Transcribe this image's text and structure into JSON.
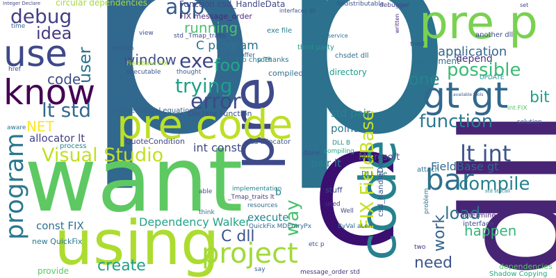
{
  "words": [
    {
      "text": "p",
      "color": "#31688e"
    },
    {
      "text": "p",
      "color": "#2c718e"
    },
    {
      "text": "dll",
      "color": "#482475"
    },
    {
      "text": "want",
      "color": "#5ec962"
    },
    {
      "text": "C",
      "color": "#3b0f70"
    },
    {
      "text": "using",
      "color": "#addc30"
    },
    {
      "text": "pre",
      "color": "#3e4a89"
    },
    {
      "text": "code",
      "color": "#26828e"
    },
    {
      "text": "pre code",
      "color": "#bddf26"
    },
    {
      "text": "use",
      "color": "#3e4989"
    },
    {
      "text": "know",
      "color": "#440154"
    },
    {
      "text": "pre p",
      "color": "#7ad151"
    },
    {
      "text": "project",
      "color": "#a0da39"
    },
    {
      "text": "gt gt",
      "color": "#31688e"
    },
    {
      "text": "program",
      "color": "#2a788e"
    },
    {
      "text": "Visual Studio",
      "color": "#c2df23"
    },
    {
      "text": "FIX FieldBase",
      "color": "#c5e021"
    },
    {
      "text": "debug",
      "color": "#433e85"
    },
    {
      "text": "lt std",
      "color": "#31688e"
    },
    {
      "text": "bar",
      "color": "#2d708e"
    },
    {
      "text": "lt int",
      "color": "#3b528b"
    },
    {
      "text": "trying",
      "color": "#1f9e89"
    },
    {
      "text": "function",
      "color": "#2a788e"
    },
    {
      "text": "error",
      "color": "#3e4989"
    },
    {
      "text": "possible",
      "color": "#3bbb75"
    },
    {
      "text": "app",
      "color": "#375a8c"
    },
    {
      "text": "exe",
      "color": "#404588"
    },
    {
      "text": "foo",
      "color": "#22a884"
    },
    {
      "text": "idea",
      "color": "#443983"
    },
    {
      "text": "user",
      "color": "#2c728e"
    },
    {
      "text": "one",
      "color": "#25848e"
    },
    {
      "text": "compile",
      "color": "#26828e"
    },
    {
      "text": "load",
      "color": "#2c728e"
    },
    {
      "text": "need",
      "color": "#3a548c"
    },
    {
      "text": "work",
      "color": "#33638d"
    },
    {
      "text": "way",
      "color": "#46c06f"
    },
    {
      "text": "create",
      "color": "#1fa088"
    },
    {
      "text": "C dll",
      "color": "#3b528b"
    },
    {
      "text": "running",
      "color": "#4ac16d"
    },
    {
      "text": "window",
      "color": "#3d4e8a"
    },
    {
      "text": "C program",
      "color": "#2d718e"
    },
    {
      "text": "code",
      "color": "#3e4c8a"
    },
    {
      "text": "NET",
      "color": "#fde725"
    },
    {
      "text": "Dependency Walker",
      "color": "#20a386"
    },
    {
      "text": "execute",
      "color": "#24868e"
    },
    {
      "text": "application",
      "color": "#31688e"
    },
    {
      "text": "FieldBase gt",
      "color": "#31688e"
    },
    {
      "text": "happen",
      "color": "#35b779"
    },
    {
      "text": "bit",
      "color": "#1f9e89"
    },
    {
      "text": "int const",
      "color": "#3f4788"
    },
    {
      "text": "const FIX",
      "color": "#2d708e"
    },
    {
      "text": "allocator lt",
      "color": "#423f85"
    },
    {
      "text": "std pair",
      "color": "#25858e"
    },
    {
      "text": "point",
      "color": "#2a768e"
    },
    {
      "text": "pair lt",
      "color": "#27808e"
    },
    {
      "text": "depend",
      "color": "#46307e"
    },
    {
      "text": "Microsoft",
      "color": "#38598c"
    },
    {
      "text": "Function csd_HandleData",
      "color": "#3f4889"
    },
    {
      "text": "circular dependencies",
      "color": "#a2da37"
    },
    {
      "text": "FIX message_order",
      "color": "#482878"
    },
    {
      "text": "implement",
      "color": "#2e6f8e"
    },
    {
      "text": "directory",
      "color": "#1e9b8a"
    },
    {
      "text": "compiled",
      "color": "#2f6b8e"
    },
    {
      "text": "mathematical equations",
      "color": "#34618d"
    },
    {
      "text": "Declare Function",
      "color": "#3b518b"
    },
    {
      "text": "QuoteCondition",
      "color": "#414487"
    },
    {
      "text": "std allocator",
      "color": "#39568c"
    },
    {
      "text": "Lib chsdet",
      "color": "#26828e"
    },
    {
      "text": "exe file",
      "color": "#287d8e"
    },
    {
      "text": "chsdet dll",
      "color": "#2e6e8e"
    },
    {
      "text": "third party",
      "color": "#1f958b"
    },
    {
      "text": "p Thanks",
      "color": "#2b758e"
    },
    {
      "text": "FieldBase FIX",
      "color": "#a8db34"
    },
    {
      "text": "executable",
      "color": "#3a548c"
    },
    {
      "text": "thought",
      "color": "#365d8d"
    },
    {
      "text": "std _Tmap_traits",
      "color": "#404588"
    },
    {
      "text": "DLL B",
      "color": "#21908d"
    },
    {
      "text": "DLL file",
      "color": "#2a788e"
    },
    {
      "text": "csd_HandleData",
      "color": "#39568c"
    },
    {
      "text": "b",
      "color": "#277f8e"
    },
    {
      "text": "done",
      "color": "#3b528b"
    },
    {
      "text": "compiling",
      "color": "#22a785"
    },
    {
      "text": "attach",
      "color": "#2d708e"
    },
    {
      "text": "implementation",
      "color": "#25848e"
    },
    {
      "text": "_Tmap_traits lt",
      "color": "#443a83"
    },
    {
      "text": "stuff",
      "color": "#3e4a89"
    },
    {
      "text": "resources",
      "color": "#2f6c8e"
    },
    {
      "text": "QuickFix MDEntryPx",
      "color": "#31688e"
    },
    {
      "text": "ByVal aLen",
      "color": "#2f6b8e"
    },
    {
      "text": "used",
      "color": "#46327e"
    },
    {
      "text": "Well",
      "color": "#3e4989"
    },
    {
      "text": "etc p",
      "color": "#3d4e8a"
    },
    {
      "text": "message_order std",
      "color": "#46327e"
    },
    {
      "text": "problem",
      "color": "#2c728e"
    },
    {
      "text": "determine",
      "color": "#482878"
    },
    {
      "text": "interface",
      "color": "#3f4788"
    },
    {
      "text": "UPDATE",
      "color": "#21918c"
    },
    {
      "text": "int FIX",
      "color": "#58c765"
    },
    {
      "text": "solution",
      "color": "#3b528b"
    },
    {
      "text": "dependencies",
      "color": "#54c568"
    },
    {
      "text": "Shadow Copying",
      "color": "#22a884"
    },
    {
      "text": "another dll",
      "color": "#3e4a89"
    },
    {
      "text": "debugger",
      "color": "#424186"
    },
    {
      "text": "Redistributable",
      "color": "#3a538b"
    },
    {
      "text": "interfaces dll",
      "color": "#3c4f8a"
    },
    {
      "text": "std stdcall",
      "color": "#26828e"
    },
    {
      "text": "new QuickFix",
      "color": "#2a788e"
    },
    {
      "text": "provide",
      "color": "#5ac864"
    },
    {
      "text": "Integer Declare",
      "color": "#404688"
    },
    {
      "text": "href",
      "color": "#3e4989"
    },
    {
      "text": "time",
      "color": "#33638d"
    },
    {
      "text": "aware",
      "color": "#2c728e"
    },
    {
      "text": "able",
      "color": "#3d4d8a"
    },
    {
      "text": "think",
      "color": "#2e6e8e"
    },
    {
      "text": "view",
      "color": "#3b528b"
    },
    {
      "text": "system",
      "color": "#38598c"
    },
    {
      "text": "process",
      "color": "#27808e"
    },
    {
      "text": "say",
      "color": "#34618d"
    },
    {
      "text": "two",
      "color": "#46307e"
    },
    {
      "text": "service",
      "color": "#2c718e"
    },
    {
      "text": "offer",
      "color": "#33638d"
    },
    {
      "text": "tried",
      "color": "#3c508b"
    },
    {
      "text": "written",
      "color": "#472d7b"
    },
    {
      "text": "available tools",
      "color": "#39558c"
    },
    {
      "text": "set",
      "color": "#404588"
    }
  ]
}
